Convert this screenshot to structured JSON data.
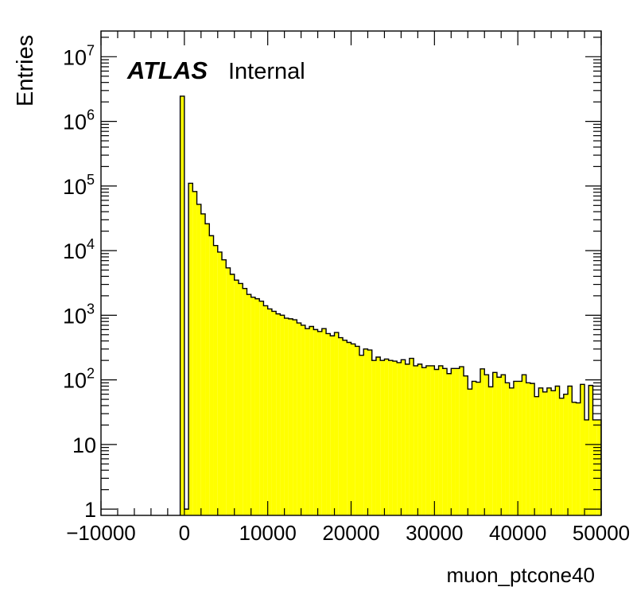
{
  "chart_data": {
    "type": "bar",
    "title": "",
    "xlabel": "muon_ptcone40",
    "ylabel": "Entries",
    "xlim": [
      -10000,
      50000
    ],
    "ylim": [
      0.8,
      25000000
    ],
    "log_y": true,
    "grid": false,
    "legend": "none",
    "annotation": {
      "experiment": "ATLAS",
      "status": "Internal"
    },
    "x_ticks": [
      -10000,
      0,
      10000,
      20000,
      30000,
      40000,
      50000
    ],
    "x_tick_labels": [
      "−10000",
      "0",
      "10000",
      "20000",
      "30000",
      "40000",
      "50000"
    ],
    "y_ticks": [
      1,
      10,
      100,
      1000,
      10000,
      100000,
      1000000,
      10000000
    ],
    "y_tick_labels": [
      {
        "base": "1",
        "exp": ""
      },
      {
        "base": "10",
        "exp": ""
      },
      {
        "base": "10",
        "exp": "2"
      },
      {
        "base": "10",
        "exp": "3"
      },
      {
        "base": "10",
        "exp": "4"
      },
      {
        "base": "10",
        "exp": "5"
      },
      {
        "base": "10",
        "exp": "6"
      },
      {
        "base": "10",
        "exp": "7"
      }
    ],
    "bin_width": 500,
    "bin_start": -500,
    "values": [
      2450000,
      1,
      110000,
      82000,
      52000,
      37000,
      26000,
      17000,
      12000,
      9500,
      7200,
      5400,
      4300,
      3500,
      3100,
      2600,
      2100,
      1900,
      1800,
      1650,
      1400,
      1250,
      1150,
      1050,
      1000,
      900,
      880,
      850,
      760,
      700,
      620,
      670,
      600,
      560,
      620,
      520,
      480,
      540,
      450,
      410,
      380,
      360,
      330,
      240,
      300,
      290,
      200,
      225,
      200,
      210,
      200,
      195,
      185,
      205,
      175,
      215,
      165,
      175,
      155,
      165,
      165,
      145,
      165,
      150,
      125,
      150,
      150,
      160,
      115,
      72,
      95,
      92,
      148,
      120,
      78,
      130,
      110,
      120,
      90,
      75,
      95,
      95,
      120,
      90,
      88,
      55,
      75,
      65,
      75,
      68,
      80,
      52,
      60,
      80,
      45,
      44,
      85,
      24,
      82,
      24,
      24
    ],
    "colors": {
      "fill": "#ffff00",
      "line": "#000000"
    }
  }
}
